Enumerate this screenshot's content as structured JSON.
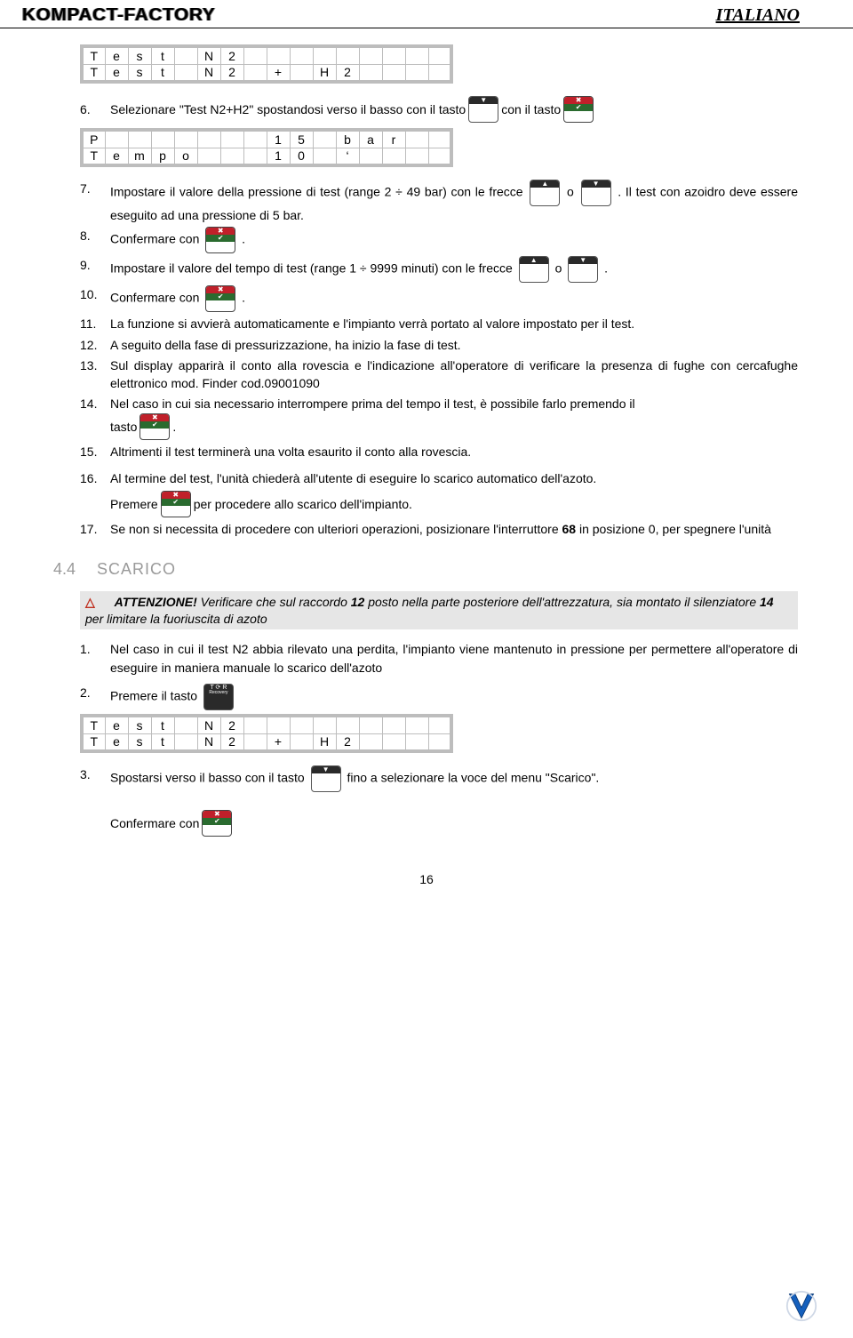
{
  "header": {
    "brand": "KOMPACT-FACTORY",
    "lang": "ITALIANO"
  },
  "tables": {
    "t1": [
      [
        "T",
        "e",
        "s",
        "t",
        "",
        "N",
        "2",
        "",
        "",
        "",
        "",
        "",
        "",
        "",
        "",
        ""
      ],
      [
        "T",
        "e",
        "s",
        "t",
        "",
        "N",
        "2",
        "",
        "+",
        "",
        "H",
        "2",
        "",
        "",
        "",
        ""
      ]
    ],
    "t2": [
      [
        "P",
        "",
        "",
        "",
        "",
        "",
        "",
        "",
        "1",
        "5",
        "",
        "b",
        "a",
        "r",
        "",
        ""
      ],
      [
        "T",
        "e",
        "m",
        "p",
        "o",
        "",
        "",
        "",
        "1",
        "0",
        "",
        "‘",
        "",
        "",
        "",
        ""
      ]
    ],
    "t3": [
      [
        "T",
        "e",
        "s",
        "t",
        "",
        "N",
        "2",
        "",
        "",
        "",
        "",
        "",
        "",
        "",
        "",
        ""
      ],
      [
        "T",
        "e",
        "s",
        "t",
        "",
        "N",
        "2",
        "",
        "+",
        "",
        "H",
        "2",
        "",
        "",
        "",
        ""
      ]
    ]
  },
  "steps_a": {
    "6": {
      "pre": "Selezionare \"Test N2+H2\" spostandosi verso il basso con il tasto ",
      "mid": " con il tasto "
    },
    "7": {
      "pre": "Impostare il valore della pressione di test (range 2 ÷ 49 bar) con le frecce ",
      "mid": " o ",
      "post": ". Il test con azoidro deve essere eseguito ad una pressione di 5 bar."
    },
    "8": {
      "pre": "Confermare con ",
      "post": "."
    },
    "9": {
      "pre": "Impostare il valore del tempo di test (range 1 ÷ 9999 minuti) con le frecce ",
      "mid": " o ",
      "post": "."
    },
    "10": {
      "pre": "Confermare con ",
      "post": "."
    },
    "11": "La funzione si avvierà automaticamente e l'impianto verrà portato al valore impostato per il test.",
    "12": "A seguito della fase di pressurizzazione, ha inizio la fase di test.",
    "13": "Sul display apparirà il conto alla rovescia e l'indicazione all'operatore di verificare la presenza di fughe con cercafughe elettronico mod. Finder cod.09001090",
    "14": {
      "pre": "Nel caso in cui sia necessario interrompere prima del tempo il test, è possibile farlo premendo il",
      "tasto": "tasto ",
      "post": "."
    },
    "15": "Altrimenti il test terminerà una volta esaurito il conto alla rovescia.",
    "16": {
      "pre": "Al termine del test, l'unità chiederà all'utente di eseguire lo scarico automatico dell'azoto.",
      "premere": "Premere ",
      "post": " per procedere allo scarico dell'impianto."
    },
    "17": {
      "pre": "Se non si necessita di procedere con ulteriori operazioni, posizionare l'interruttore ",
      "bold": "68",
      "post": " in posizione 0, per spegnere l'unità"
    }
  },
  "section": {
    "num": "4.4",
    "title": "SCARICO"
  },
  "warn": {
    "label": "ATTENZIONE!",
    "text_a": " Verificare che sul raccordo ",
    "b1": "12",
    "text_b": " posto nella parte posteriore dell'attrezzatura, sia montato il silenziatore ",
    "b2": "14",
    "text_c": " per limitare la fuoriuscita di azoto"
  },
  "steps_b": {
    "1": "Nel caso in cui il test N2 abbia rilevato una perdita, l'impianto viene mantenuto in pressione per permettere all'operatore di eseguire in maniera manuale lo scarico dell'azoto",
    "2": "Premere il tasto ",
    "3": {
      "pre": "Spostarsi verso il basso con il tasto ",
      "post": " fino a selezionare la voce del menu \"Scarico\".",
      "conf": "Confermare con "
    }
  },
  "page": "16"
}
